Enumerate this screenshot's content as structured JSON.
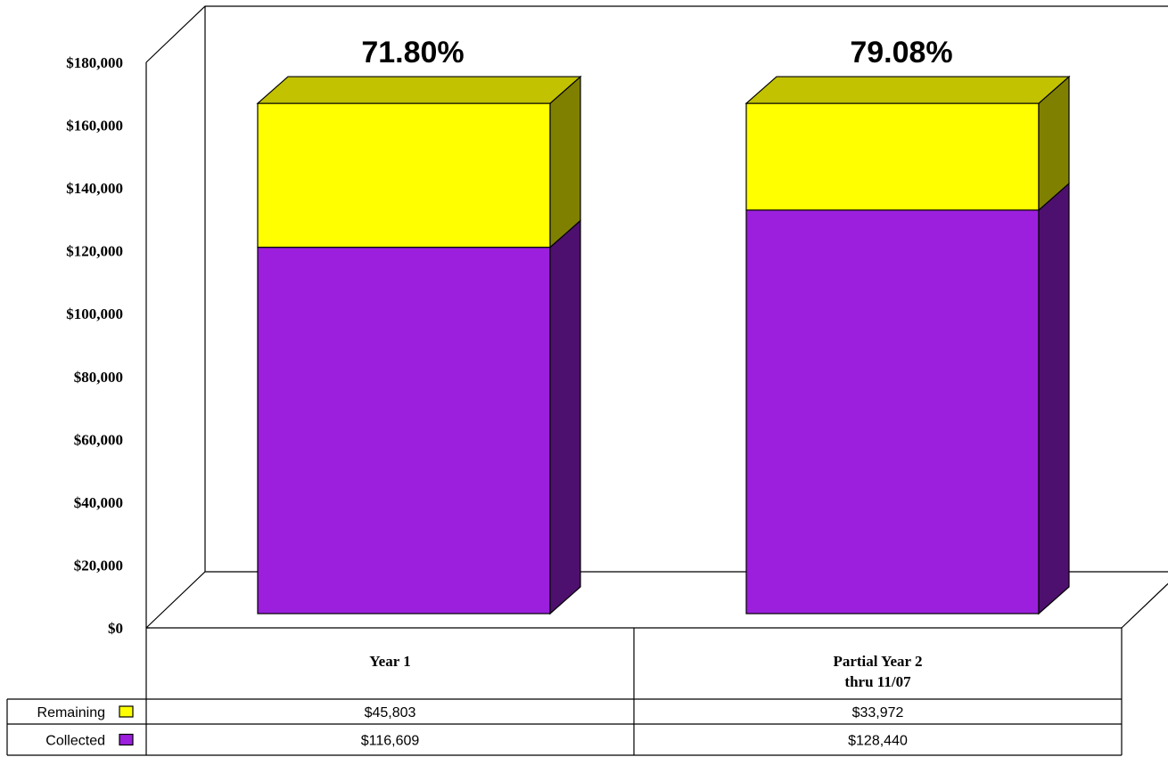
{
  "chart_data": {
    "type": "bar",
    "stacked": true,
    "three_d": true,
    "categories": [
      {
        "lines": [
          "Year 1"
        ]
      },
      {
        "lines": [
          "Partial Year 2",
          "thru 11/07"
        ]
      }
    ],
    "series": [
      {
        "name": "Collected",
        "color": "#9b1fdc",
        "values": [
          116609,
          128440
        ],
        "value_labels": [
          "$116,609",
          "$128,440"
        ]
      },
      {
        "name": "Remaining",
        "color": "#ffff00",
        "values": [
          45803,
          33972
        ],
        "value_labels": [
          "$45,803",
          "$33,972"
        ]
      }
    ],
    "top_labels": [
      "71.80%",
      "79.08%"
    ],
    "ylim": [
      0,
      180000
    ],
    "yticks": [
      {
        "value": 0,
        "label": "$0"
      },
      {
        "value": 20000,
        "label": "$20,000"
      },
      {
        "value": 40000,
        "label": "$40,000"
      },
      {
        "value": 60000,
        "label": "$60,000"
      },
      {
        "value": 80000,
        "label": "$80,000"
      },
      {
        "value": 100000,
        "label": "$100,000"
      },
      {
        "value": 120000,
        "label": "$120,000"
      },
      {
        "value": 140000,
        "label": "$140,000"
      },
      {
        "value": 160000,
        "label": "$160,000"
      },
      {
        "value": 180000,
        "label": "$180,000"
      }
    ],
    "legend_placement": "data-table-left",
    "data_table_rows": [
      "Remaining",
      "Collected"
    ],
    "grid": false
  }
}
